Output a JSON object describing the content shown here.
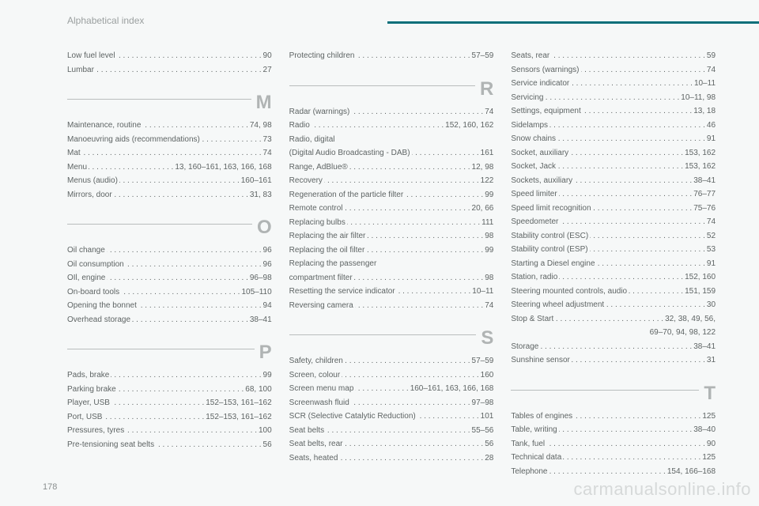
{
  "header": {
    "title": "Alphabetical index"
  },
  "page_number": "178",
  "watermark": "carmanualsonline.info",
  "style": {
    "bg": "#f6f8f8",
    "text_color": "#5e6464",
    "accent_color": "#0a6f7a",
    "letter_color": "#b0b4b4",
    "rule_color": "#b9bdbd",
    "font_size_body_pt": 10,
    "font_size_header_pt": 12,
    "font_size_letter_pt": 24,
    "columns": 3
  },
  "columns": [
    {
      "groups": [
        {
          "letter": null,
          "entries": [
            {
              "label": "Low fuel level",
              "pages": "90"
            },
            {
              "label": "Lumbar",
              "pages": "27"
            }
          ]
        },
        {
          "letter": "M",
          "entries": [
            {
              "label": "Maintenance, routine",
              "pages": "74, 98"
            },
            {
              "label": "Manoeuvring aids (recommendations)",
              "pages": "73"
            },
            {
              "label": "Mat",
              "pages": "74"
            },
            {
              "label": "Menu",
              "pages": "13, 160–161, 163, 166, 168"
            },
            {
              "label": "Menus (audio)",
              "pages": "160–161"
            },
            {
              "label": "Mirrors, door",
              "pages": "31, 83"
            }
          ]
        },
        {
          "letter": "O",
          "entries": [
            {
              "label": "Oil change",
              "pages": "96"
            },
            {
              "label": "Oil consumption",
              "pages": "96"
            },
            {
              "label": "OIl, engine",
              "pages": "96–98"
            },
            {
              "label": "On-board tools",
              "pages": "105–110"
            },
            {
              "label": "Opening the bonnet",
              "pages": "94"
            },
            {
              "label": "Overhead storage",
              "pages": "38–41"
            }
          ]
        },
        {
          "letter": "P",
          "entries": [
            {
              "label": "Pads, brake",
              "pages": "99"
            },
            {
              "label": "Parking brake",
              "pages": "68, 100"
            },
            {
              "label": "Player, USB",
              "pages": "152–153, 161–162"
            },
            {
              "label": "Port, USB",
              "pages": "152–153, 161–162"
            },
            {
              "label": "Pressures, tyres",
              "pages": "100"
            },
            {
              "label": "Pre-tensioning seat belts",
              "pages": "56"
            }
          ]
        }
      ]
    },
    {
      "groups": [
        {
          "letter": null,
          "entries": [
            {
              "label": "Protecting children",
              "pages": "57–59"
            }
          ]
        },
        {
          "letter": "R",
          "entries": [
            {
              "label": "Radar (warnings)",
              "pages": "74"
            },
            {
              "label": "Radio",
              "pages": "152, 160, 162"
            },
            {
              "label": "Radio, digital",
              "pages": "",
              "noleader": true
            },
            {
              "label": "(Digital Audio Broadcasting - DAB)",
              "pages": "161"
            },
            {
              "label": "Range, AdBlue®",
              "pages": "12, 98"
            },
            {
              "label": "Recovery",
              "pages": "122"
            },
            {
              "label": "Regeneration of the particle filter",
              "pages": "99"
            },
            {
              "label": "Remote control",
              "pages": "20, 66"
            },
            {
              "label": "Replacing bulbs",
              "pages": "111"
            },
            {
              "label": "Replacing the air filter",
              "pages": "98"
            },
            {
              "label": "Replacing the oil filter",
              "pages": "99"
            },
            {
              "label": "Replacing the passenger",
              "pages": "",
              "noleader": true
            },
            {
              "label": "compartment filter",
              "pages": "98"
            },
            {
              "label": "Resetting the service indicator",
              "pages": "10–11"
            },
            {
              "label": "Reversing camera",
              "pages": "74"
            }
          ]
        },
        {
          "letter": "S",
          "entries": [
            {
              "label": "Safety, children",
              "pages": "57–59"
            },
            {
              "label": "Screen, colour",
              "pages": "160"
            },
            {
              "label": "Screen menu map",
              "pages": "160–161, 163, 166, 168"
            },
            {
              "label": "Screenwash fluid",
              "pages": "97–98"
            },
            {
              "label": "SCR (Selective Catalytic Reduction)",
              "pages": "101"
            },
            {
              "label": "Seat belts",
              "pages": "55–56"
            },
            {
              "label": "Seat belts, rear",
              "pages": "56"
            },
            {
              "label": "Seats, heated",
              "pages": "28"
            }
          ]
        }
      ]
    },
    {
      "groups": [
        {
          "letter": null,
          "entries": [
            {
              "label": "Seats, rear",
              "pages": "59"
            },
            {
              "label": "Sensors (warnings)",
              "pages": "74"
            },
            {
              "label": "Service indicator",
              "pages": "10–11"
            },
            {
              "label": "Servicing",
              "pages": "10–11, 98"
            },
            {
              "label": "Settings, equipment",
              "pages": "13, 18"
            },
            {
              "label": "Sidelamps",
              "pages": "46"
            },
            {
              "label": "Snow chains",
              "pages": "91"
            },
            {
              "label": "Socket, auxiliary",
              "pages": "153, 162"
            },
            {
              "label": "Socket, Jack",
              "pages": "153, 162"
            },
            {
              "label": "Sockets, auxiliary",
              "pages": "38–41"
            },
            {
              "label": "Speed limiter",
              "pages": "76–77"
            },
            {
              "label": "Speed limit recognition",
              "pages": "75–76"
            },
            {
              "label": "Speedometer",
              "pages": "74"
            },
            {
              "label": "Stability control (ESC)",
              "pages": "52"
            },
            {
              "label": "Stability control (ESP)",
              "pages": "53"
            },
            {
              "label": "Starting a Diesel engine",
              "pages": "91"
            },
            {
              "label": "Station, radio",
              "pages": "152, 160"
            },
            {
              "label": "Steering mounted controls, audio",
              "pages": "151, 159"
            },
            {
              "label": "Steering wheel adjustment",
              "pages": "30"
            },
            {
              "label": "Stop & Start",
              "pages": "32, 38, 49, 56,"
            },
            {
              "label": "",
              "pages": "69–70, 94, 98, 122",
              "continuation": true
            },
            {
              "label": "Storage",
              "pages": "38–41"
            },
            {
              "label": "Sunshine sensor",
              "pages": "31"
            }
          ]
        },
        {
          "letter": "T",
          "entries": [
            {
              "label": "Tables of engines",
              "pages": "125"
            },
            {
              "label": "Table, writing",
              "pages": "38–40"
            },
            {
              "label": "Tank, fuel",
              "pages": "90"
            },
            {
              "label": "Technical data",
              "pages": "125"
            },
            {
              "label": "Telephone",
              "pages": "154, 166–168"
            }
          ]
        }
      ]
    }
  ]
}
